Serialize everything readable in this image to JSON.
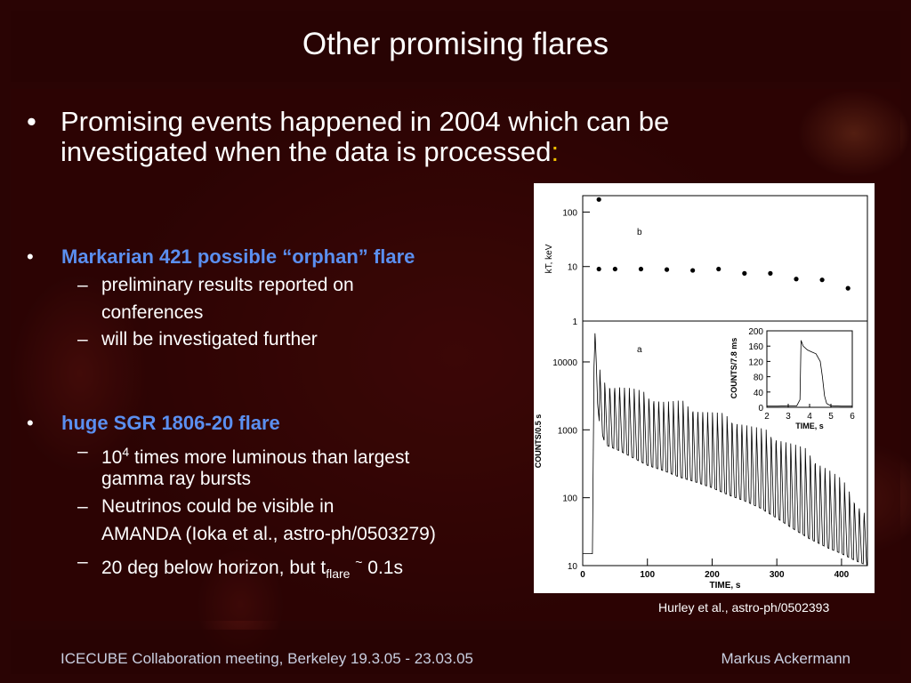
{
  "slide": {
    "title": "Other promising flares",
    "intro_bullet": {
      "symbol": "•",
      "text": "Promising events happened in 2004 which can be investigated when the data is processed",
      "colon": ":"
    },
    "bullets": [
      {
        "symbol": "•",
        "heading": "Markarian 421 possible “orphan” flare",
        "subitems": [
          {
            "dash": "–",
            "lines": [
              "preliminary results reported on",
              "conferences"
            ]
          },
          {
            "dash": "–",
            "lines": [
              "will be investigated further"
            ]
          }
        ]
      },
      {
        "symbol": "•",
        "heading": "huge SGR 1806-20 flare",
        "sub1": {
          "dash": "–",
          "base": "10",
          "exp": "4",
          "rest": " times more luminous than largest",
          "line2": "gamma ray bursts"
        },
        "sub2": {
          "dash": "–",
          "line1": "Neutrinos could be visible in",
          "line2": "AMANDA (Ioka et al., astro-ph/0503279)"
        },
        "sub3": {
          "dash": "–",
          "pre": "20 deg below horizon, but t",
          "subscript": "flare",
          "tilde": "~",
          "post": " 0.1s"
        }
      }
    ],
    "citation": "Hurley et al., astro-ph/0502393",
    "footer": {
      "left": "ICECUBE Collaboration meeting, Berkeley 19.3.05 - 23.03.05",
      "right": "Markus Ackermann"
    }
  },
  "chart_data": [
    {
      "type": "scatter",
      "panel_label": "b",
      "ylabel": "kT, keV",
      "yscale": "log",
      "ylim": [
        1,
        200
      ],
      "yticks": [
        "1",
        "10",
        "100"
      ],
      "xlim": [
        0,
        440
      ],
      "x": [
        25,
        25,
        50,
        90,
        130,
        170,
        210,
        250,
        290,
        330,
        370,
        410
      ],
      "y": [
        170,
        9,
        9,
        9,
        8.8,
        8.5,
        9,
        7.5,
        7.5,
        5.9,
        5.7,
        4
      ]
    },
    {
      "type": "line",
      "panel_label": "a",
      "ylabel": "COUNTS/0.5 s",
      "xlabel": "TIME, s",
      "yscale": "log",
      "ylim": [
        10,
        40000
      ],
      "yticks": [
        "10",
        "100",
        "1000",
        "10000"
      ],
      "xlim": [
        0,
        440
      ],
      "xticks": [
        "0",
        "100",
        "200",
        "300",
        "400"
      ],
      "series": [
        {
          "x": [
            0,
            15,
            18,
            22,
            26,
            35,
            55,
            75,
            100,
            125,
            150,
            175,
            200,
            225,
            250,
            275,
            300,
            325,
            350,
            380,
            400,
            420,
            440
          ],
          "y_upper": [
            15,
            15,
            30000,
            20000,
            8000,
            5000,
            5000,
            4500,
            3500,
            3000,
            2800,
            2300,
            2000,
            1700,
            1400,
            1100,
            900,
            700,
            500,
            300,
            200,
            100,
            60
          ],
          "y_lower": [
            15,
            15,
            12000,
            3000,
            1200,
            600,
            500,
            400,
            300,
            250,
            200,
            170,
            140,
            110,
            90,
            70,
            50,
            35,
            25,
            18,
            15,
            12,
            10
          ],
          "period_s": 7.56
        }
      ]
    },
    {
      "type": "line",
      "ylabel": "COUNTS/7.8 ms",
      "xlabel": "TIME, s",
      "ylim": [
        0,
        200
      ],
      "yticks": [
        "0",
        "40",
        "80",
        "120",
        "160",
        "200"
      ],
      "xlim": [
        2,
        6
      ],
      "xticks": [
        "2",
        "3",
        "4",
        "5",
        "6"
      ],
      "series": [
        {
          "x": [
            2.0,
            2.5,
            3.0,
            3.4,
            3.55,
            3.6,
            3.7,
            3.9,
            4.1,
            4.3,
            4.5,
            4.6,
            4.7,
            4.8,
            5.0,
            5.5,
            6.0
          ],
          "y": [
            3,
            3,
            4,
            4,
            20,
            175,
            160,
            150,
            145,
            140,
            120,
            80,
            30,
            10,
            4,
            3,
            3
          ]
        }
      ]
    }
  ]
}
